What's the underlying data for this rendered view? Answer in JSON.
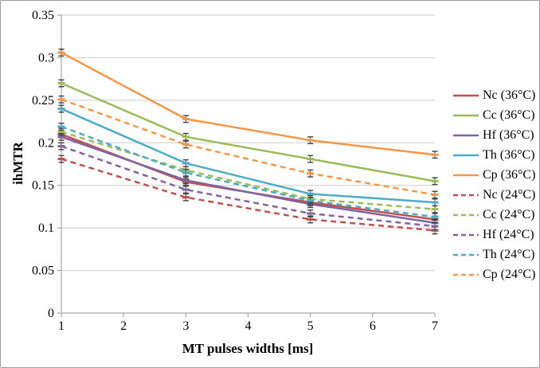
{
  "chart_data": {
    "type": "line",
    "title": "",
    "xlabel": "MT pulses widths [ms]",
    "ylabel": "ihMTR",
    "x": [
      1,
      3,
      5,
      7
    ],
    "xlim": [
      1,
      7
    ],
    "ylim": [
      0,
      0.35
    ],
    "x_ticks": [
      1,
      2,
      3,
      4,
      5,
      6,
      7
    ],
    "x_tick_labels": [
      "1",
      "2",
      "3",
      "4",
      "5",
      "6",
      "7"
    ],
    "y_ticks": [
      0,
      0.05,
      0.1,
      0.15,
      0.2,
      0.25,
      0.3,
      0.35
    ],
    "y_tick_labels": [
      "0",
      "0.05",
      "0.1",
      "0.15",
      "0.2",
      "0.25",
      "0.3",
      "0.35"
    ],
    "grid": true,
    "legend_position": "right",
    "error_bar": 0.004,
    "colors": {
      "red": "#C0504D",
      "green": "#9BBB59",
      "purple": "#8064A2",
      "teal": "#4BACC6",
      "orange": "#F79646",
      "grid": "#D4D4D4",
      "axis": "#A6A6A6",
      "error": "#404040"
    },
    "series": [
      {
        "name": "Nc (36°C)",
        "color": "#C0504D",
        "dashed": false,
        "values": [
          0.21,
          0.154,
          0.13,
          0.11
        ]
      },
      {
        "name": "Cc (36°C)",
        "color": "#9BBB59",
        "dashed": false,
        "values": [
          0.27,
          0.207,
          0.181,
          0.155
        ]
      },
      {
        "name": "Hf (36°C)",
        "color": "#8064A2",
        "dashed": false,
        "values": [
          0.207,
          0.156,
          0.128,
          0.106
        ]
      },
      {
        "name": "Th (36°C)",
        "color": "#4BACC6",
        "dashed": false,
        "values": [
          0.24,
          0.176,
          0.14,
          0.13
        ]
      },
      {
        "name": "Cp (36°C)",
        "color": "#F79646",
        "dashed": false,
        "values": [
          0.306,
          0.228,
          0.203,
          0.186
        ]
      },
      {
        "name": "Nc (24°C)",
        "color": "#C0504D",
        "dashed": true,
        "values": [
          0.181,
          0.136,
          0.11,
          0.097
        ]
      },
      {
        "name": "Cc (24°C)",
        "color": "#9BBB59",
        "dashed": true,
        "values": [
          0.213,
          0.168,
          0.134,
          0.122
        ]
      },
      {
        "name": "Hf (24°C)",
        "color": "#8064A2",
        "dashed": true,
        "values": [
          0.196,
          0.145,
          0.117,
          0.102
        ]
      },
      {
        "name": "Th (24°C)",
        "color": "#4BACC6",
        "dashed": true,
        "values": [
          0.219,
          0.165,
          0.132,
          0.113
        ]
      },
      {
        "name": "Cp (24°C)",
        "color": "#F79646",
        "dashed": true,
        "values": [
          0.251,
          0.198,
          0.164,
          0.139
        ]
      }
    ]
  }
}
